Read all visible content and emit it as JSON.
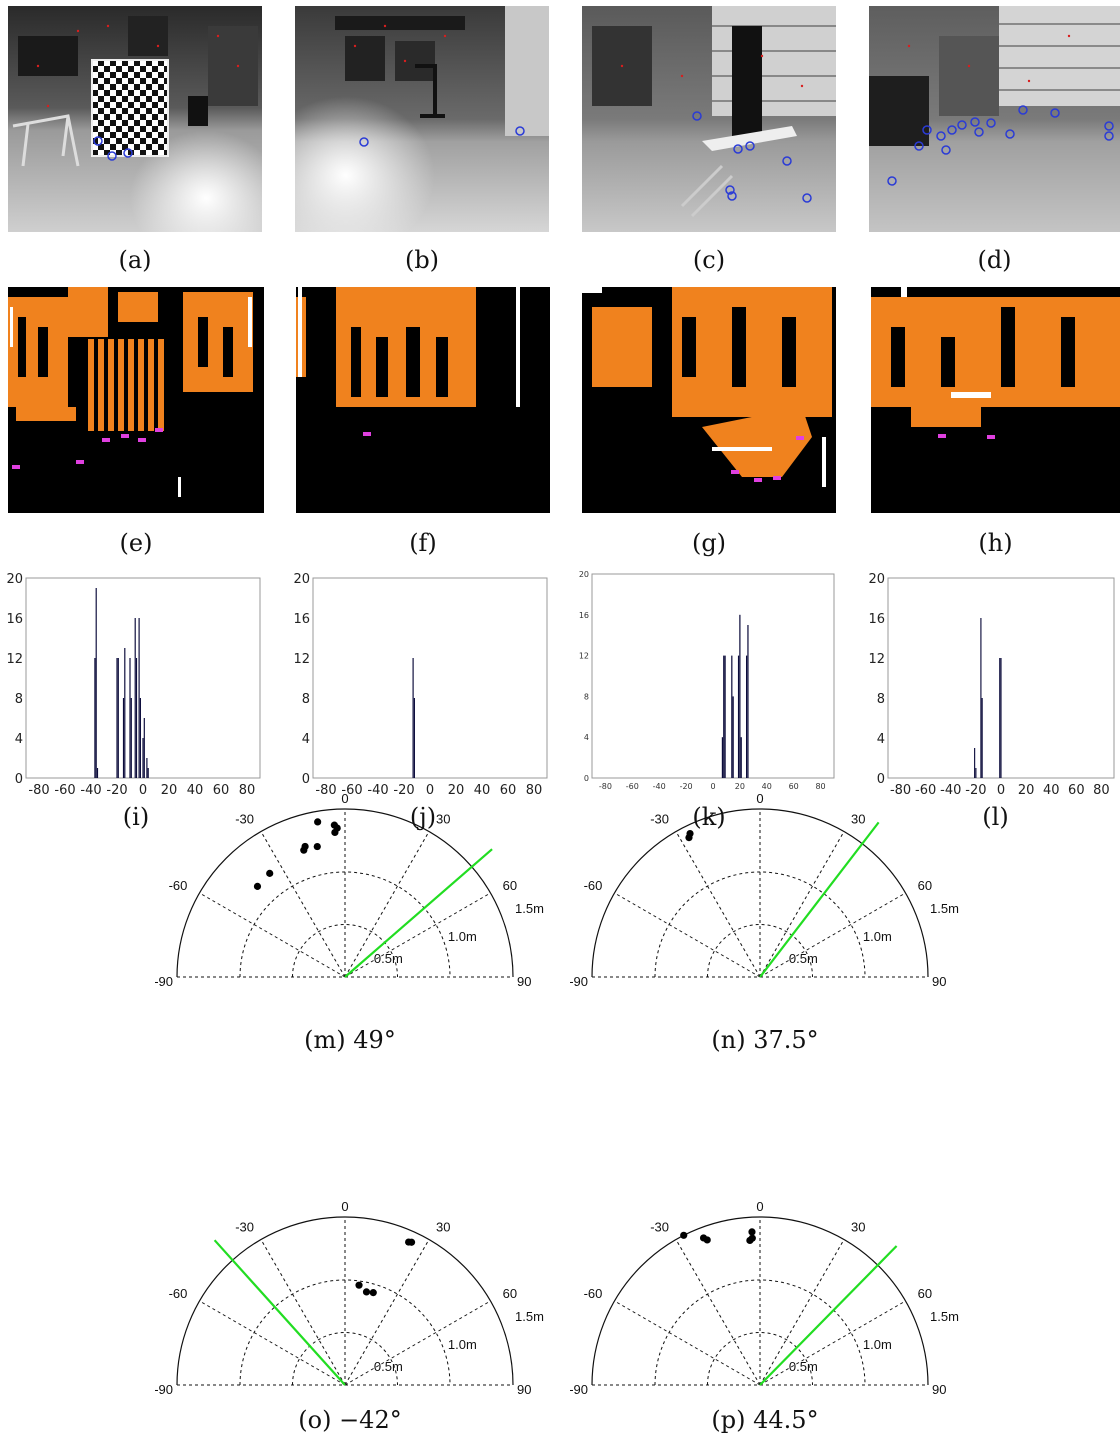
{
  "captions": {
    "a": "(a)",
    "b": "(b)",
    "c": "(c)",
    "d": "(d)",
    "e": "(e)",
    "f": "(f)",
    "g": "(g)",
    "h": "(h)",
    "i": "(i)",
    "j": "(j)",
    "k": "(k)",
    "l": "(l)",
    "m": "(m) 49°",
    "n": "(n) 37.5°",
    "o": "(o) −42°",
    "p": "(p) 44.5°"
  },
  "colors": {
    "edge_orange": "#f0821e",
    "marker_magenta": "#e040e0",
    "feature_blue": "#2a3bd6",
    "feature_red": "#d81e1e",
    "heading_green": "#22dd22",
    "bar_navy": "#0b0b3b"
  },
  "chart_data": [
    {
      "panel": "i",
      "type": "bar",
      "xlim": [
        -90,
        90
      ],
      "ylim": [
        0,
        20
      ],
      "xticks": [
        "-80",
        "-60",
        "-40",
        "-20",
        "0",
        "20",
        "40",
        "60",
        "80"
      ],
      "yticks": [
        "0",
        "4",
        "8",
        "12",
        "16",
        "20"
      ],
      "x": [
        -37,
        -36,
        -35,
        -20,
        -19,
        -15,
        -14,
        -10,
        -9,
        -6,
        -5,
        -3,
        -2,
        0,
        1,
        3,
        4
      ],
      "values": [
        12,
        19,
        1,
        12,
        12,
        8,
        13,
        12,
        8,
        16,
        12,
        16,
        8,
        4,
        6,
        2,
        1
      ]
    },
    {
      "panel": "j",
      "type": "bar",
      "xlim": [
        -90,
        90
      ],
      "ylim": [
        0,
        20
      ],
      "xticks": [
        "-80",
        "-60",
        "-40",
        "-20",
        "0",
        "20",
        "40",
        "60",
        "80"
      ],
      "yticks": [
        "0",
        "4",
        "8",
        "12",
        "16",
        "20"
      ],
      "x": [
        -13,
        -12
      ],
      "values": [
        12,
        8
      ]
    },
    {
      "panel": "k",
      "type": "bar",
      "xlim": [
        -90,
        90
      ],
      "ylim": [
        0,
        20
      ],
      "xticks": [
        "-80",
        "-60",
        "-40",
        "-20",
        "0",
        "20",
        "40",
        "60",
        "80"
      ],
      "yticks": [
        "0",
        "4",
        "8",
        "12",
        "16",
        "20"
      ],
      "x": [
        7,
        8,
        9,
        14,
        15,
        19,
        20,
        21,
        25,
        26
      ],
      "values": [
        4,
        12,
        12,
        12,
        8,
        12,
        16,
        4,
        12,
        15
      ]
    },
    {
      "panel": "l",
      "type": "bar",
      "xlim": [
        -90,
        90
      ],
      "ylim": [
        0,
        20
      ],
      "xticks": [
        "-80",
        "-60",
        "-40",
        "-20",
        "0",
        "20",
        "40",
        "60",
        "80"
      ],
      "yticks": [
        "0",
        "4",
        "8",
        "12",
        "16",
        "20"
      ],
      "x": [
        -21,
        -20,
        -16,
        -15,
        -1,
        0
      ],
      "values": [
        3,
        1,
        16,
        8,
        12,
        12
      ]
    },
    {
      "panel": "m",
      "type": "scatter",
      "theta_ticks": [
        "-90",
        "-60",
        "-30",
        "0",
        "30",
        "60",
        "90"
      ],
      "r_labels": [
        "0.5m",
        "1.0m",
        "1.5m"
      ],
      "heading_deg": 49,
      "points": [
        [
          -10,
          1.5
        ],
        [
          -4,
          1.45
        ],
        [
          -3,
          1.42
        ],
        [
          -4,
          1.38
        ],
        [
          -17,
          1.3
        ],
        [
          -18,
          1.27
        ],
        [
          -12,
          1.27
        ],
        [
          -36,
          1.22
        ],
        [
          -44,
          1.2
        ]
      ]
    },
    {
      "panel": "n",
      "type": "scatter",
      "theta_ticks": [
        "-90",
        "-60",
        "-30",
        "0",
        "30",
        "60",
        "90"
      ],
      "r_labels": [
        "0.5m",
        "1.0m",
        "1.5m"
      ],
      "heading_deg": 37.5,
      "points": [
        [
          -26,
          1.52
        ],
        [
          -27,
          1.49
        ]
      ]
    },
    {
      "panel": "o",
      "type": "scatter",
      "theta_ticks": [
        "-90",
        "-60",
        "-30",
        "0",
        "30",
        "60",
        "90"
      ],
      "r_labels": [
        "0.5m",
        "1.0m",
        "1.5m"
      ],
      "heading_deg": -42,
      "points": [
        [
          25,
          1.5
        ],
        [
          24,
          1.49
        ],
        [
          8,
          0.96
        ],
        [
          13,
          0.91
        ],
        [
          17,
          0.92
        ]
      ]
    },
    {
      "panel": "p",
      "type": "scatter",
      "theta_ticks": [
        "-90",
        "-60",
        "-30",
        "0",
        "30",
        "60",
        "90"
      ],
      "r_labels": [
        "0.5m",
        "1.0m",
        "1.5m"
      ],
      "heading_deg": 44.5,
      "points": [
        [
          -27,
          1.6
        ],
        [
          -21,
          1.5
        ],
        [
          -20,
          1.47
        ],
        [
          -3,
          1.46
        ],
        [
          -3,
          1.4
        ],
        [
          -4,
          1.38
        ]
      ]
    }
  ]
}
